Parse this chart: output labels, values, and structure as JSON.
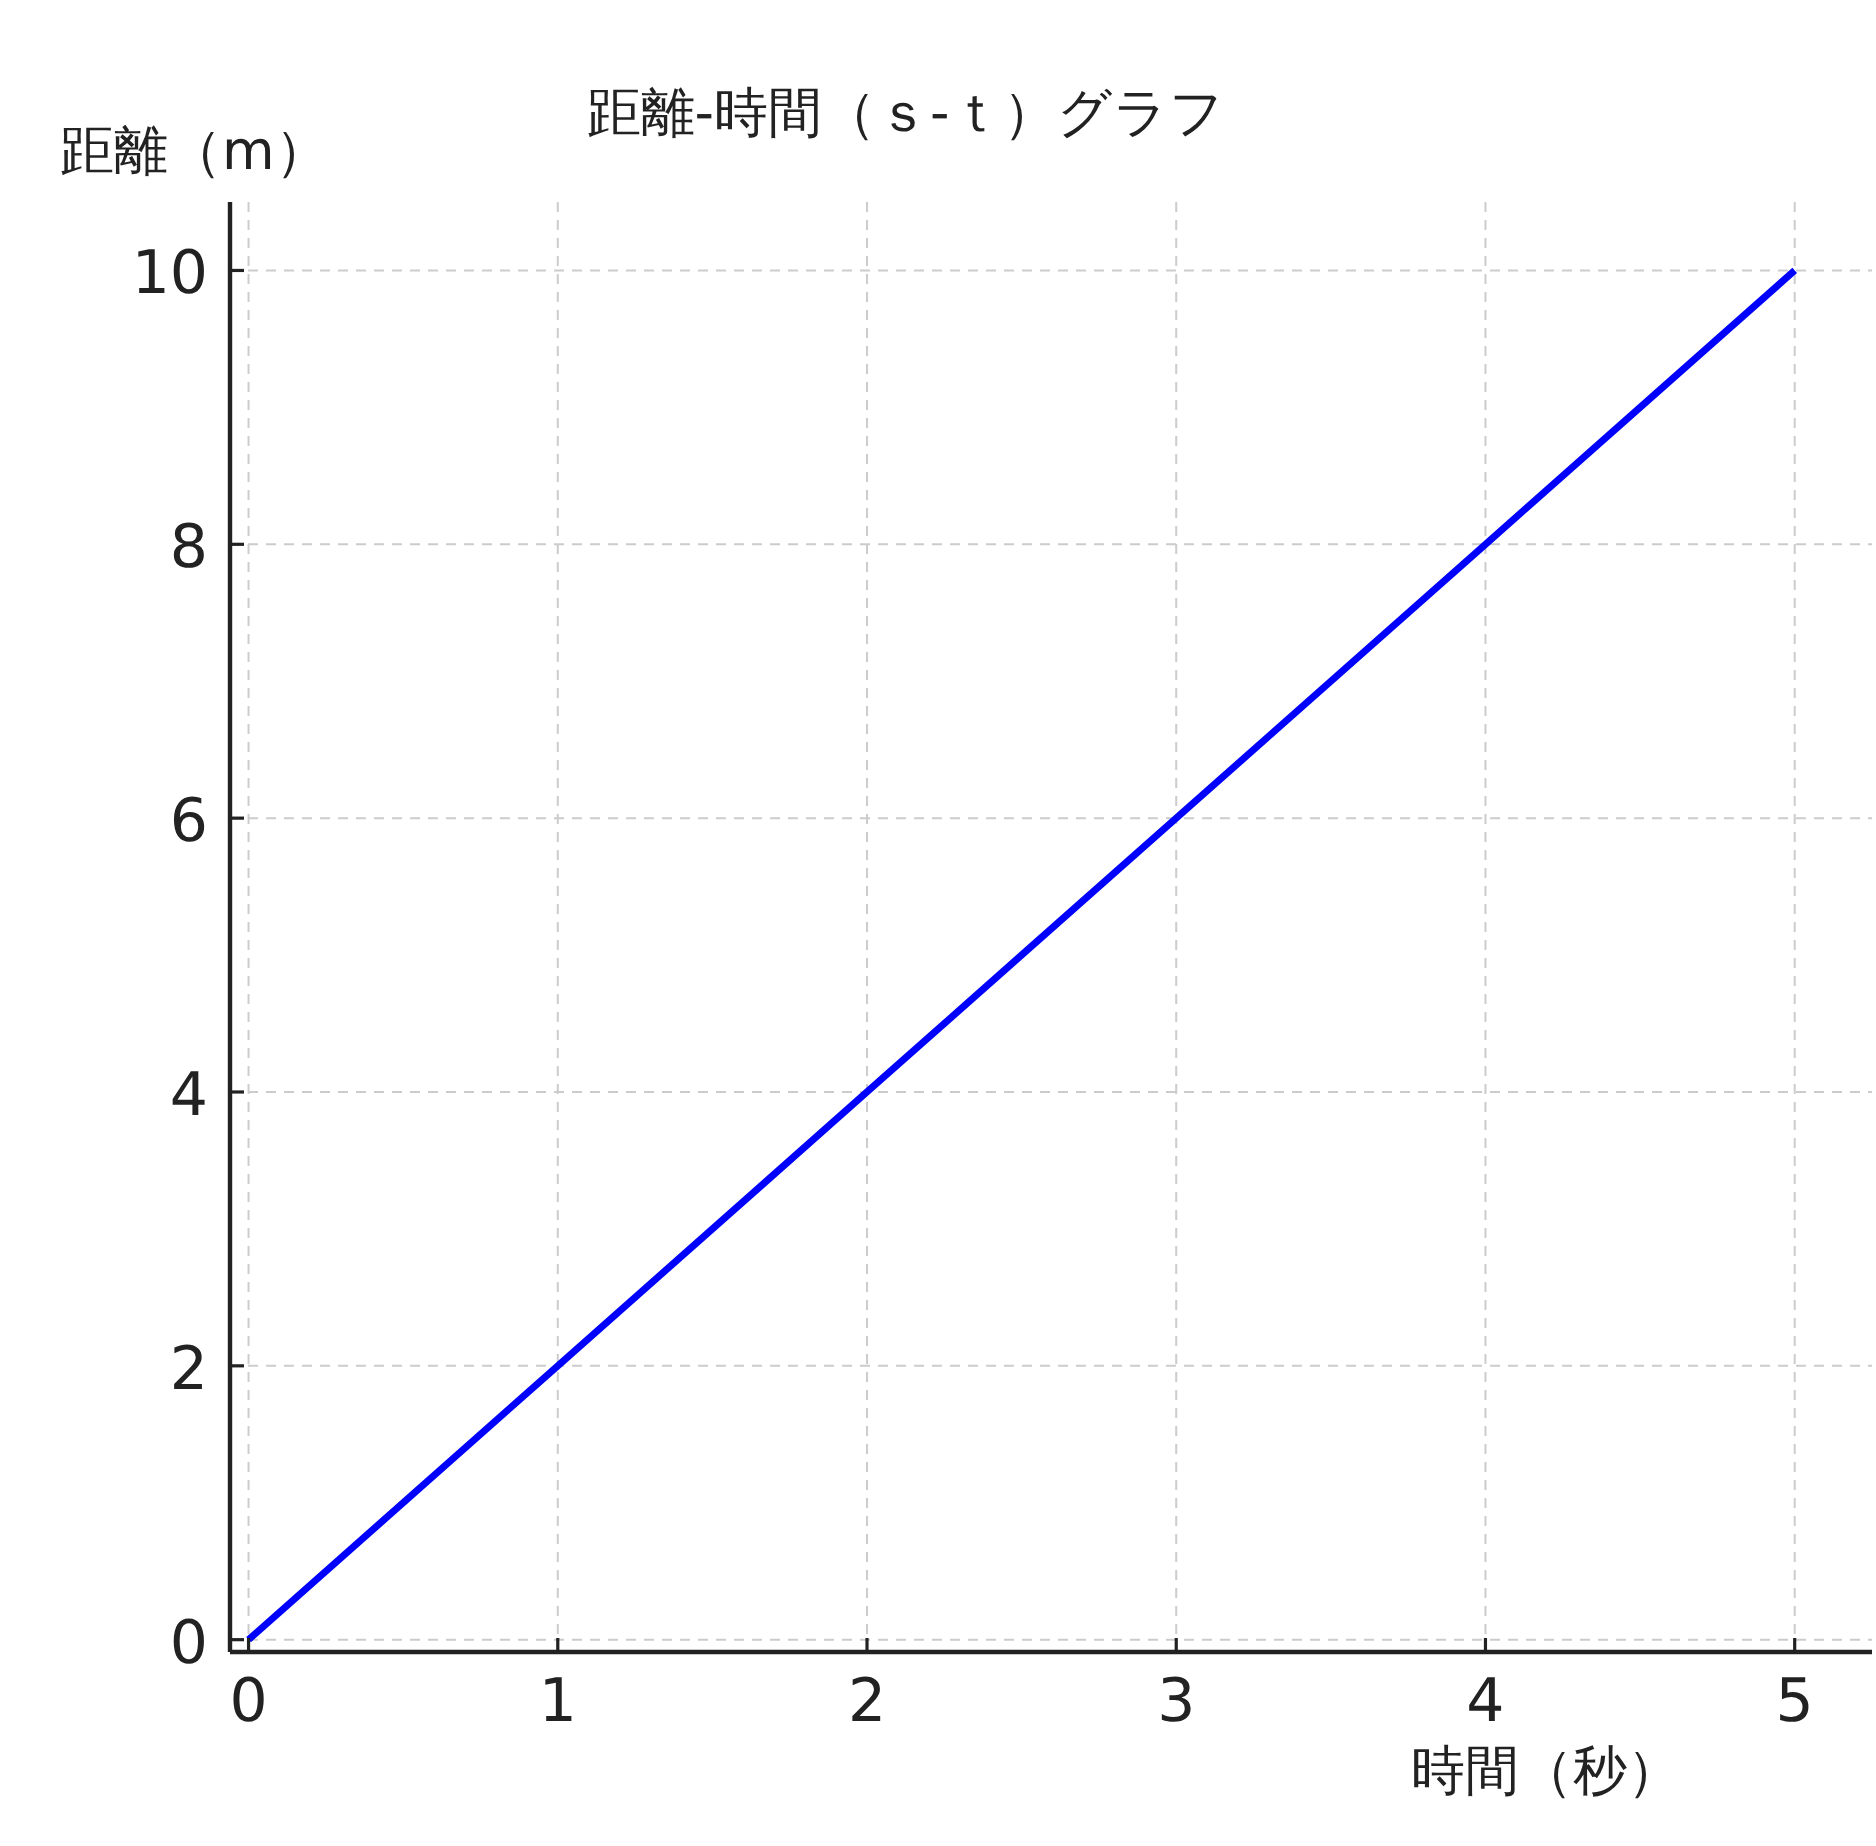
{
  "chart_data": {
    "type": "line",
    "title": "距離-時間（ｓ-ｔ）グラフ",
    "xlabel": "時間（秒）",
    "ylabel": "距離（m）",
    "x": [
      0,
      1,
      2,
      3,
      4,
      5
    ],
    "series": [
      {
        "color": "#0000ff",
        "values": [
          0,
          2,
          4,
          6,
          8,
          10
        ]
      }
    ],
    "xlim": [
      -0.06,
      5.25
    ],
    "ylim": [
      -0.09,
      10.5
    ],
    "xticks": [
      0,
      1,
      2,
      3,
      4,
      5
    ],
    "yticks": [
      0,
      2,
      4,
      6,
      8,
      10
    ],
    "grid": true,
    "line_style": "solid"
  }
}
